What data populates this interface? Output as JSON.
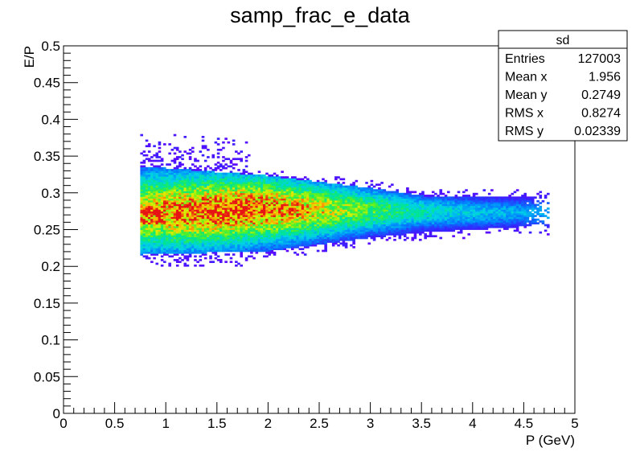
{
  "chart_data": {
    "type": "heatmap",
    "title": "samp_frac_e_data",
    "xlabel": "P (GeV)",
    "ylabel": "E/P",
    "xlim": [
      0,
      5
    ],
    "ylim": [
      0,
      0.5
    ],
    "x_ticks": [
      "0",
      "0.5",
      "1",
      "1.5",
      "2",
      "2.5",
      "3",
      "3.5",
      "4",
      "4.5",
      "5"
    ],
    "y_ticks": [
      "0",
      "0.05",
      "0.1",
      "0.15",
      "0.2",
      "0.25",
      "0.3",
      "0.35",
      "0.4",
      "0.45",
      "0.5"
    ],
    "colormap": "rainbow (purple-blue-cyan-green-yellow-red)",
    "grid": false,
    "distribution": {
      "x_range": [
        0.75,
        4.75
      ],
      "band_center": [
        [
          0.75,
          0.272
        ],
        [
          2.0,
          0.277
        ],
        [
          3.0,
          0.275
        ],
        [
          4.0,
          0.272
        ],
        [
          4.5,
          0.272
        ]
      ],
      "band_upper": [
        [
          0.75,
          0.335
        ],
        [
          2.0,
          0.322
        ],
        [
          3.0,
          0.305
        ],
        [
          3.5,
          0.295
        ],
        [
          4.5,
          0.293
        ]
      ],
      "band_lower": [
        [
          0.75,
          0.215
        ],
        [
          2.0,
          0.22
        ],
        [
          3.0,
          0.238
        ],
        [
          3.5,
          0.245
        ],
        [
          4.5,
          0.253
        ]
      ],
      "peak_region": {
        "x": 0.8,
        "y": 0.268
      }
    },
    "stats_box": {
      "title": "sd",
      "placement": "top-right",
      "rows": [
        {
          "label": "Entries",
          "value": "127003"
        },
        {
          "label": "Mean x",
          "value": "1.956"
        },
        {
          "label": "Mean y",
          "value": "0.2749"
        },
        {
          "label": "RMS x",
          "value": "0.8274"
        },
        {
          "label": "RMS y",
          "value": "0.02339"
        }
      ]
    }
  }
}
